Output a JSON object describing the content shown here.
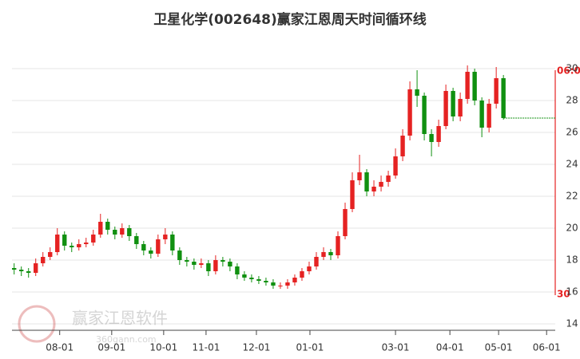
{
  "chart_data": {
    "type": "candlestick",
    "title": "卫星化学(002648)赢家江恩周天时间循环线",
    "x": [
      0,
      1,
      2,
      3,
      4,
      5,
      6,
      7,
      8,
      9,
      10,
      11,
      12,
      13,
      14,
      15,
      16,
      17,
      18,
      19,
      20,
      21,
      22,
      23,
      24,
      25,
      26,
      27,
      28,
      29,
      30,
      31,
      32,
      33,
      34,
      35,
      36,
      37,
      38,
      39,
      40,
      41,
      42,
      43,
      44,
      45,
      46,
      47,
      48,
      49,
      50,
      51,
      52,
      53,
      54,
      55,
      56,
      57,
      58,
      59,
      60,
      61,
      62,
      63,
      64,
      65,
      66,
      67,
      68
    ],
    "open": [
      17.5,
      17.4,
      17.3,
      17.2,
      17.8,
      18.2,
      18.5,
      19.6,
      18.9,
      18.8,
      19.0,
      19.1,
      19.6,
      20.4,
      19.9,
      19.6,
      20.0,
      19.5,
      19.0,
      18.6,
      18.4,
      19.3,
      19.6,
      18.6,
      18.0,
      17.9,
      17.7,
      17.8,
      17.3,
      18.0,
      17.9,
      17.6,
      17.1,
      16.9,
      16.8,
      16.7,
      16.6,
      16.4,
      16.4,
      16.6,
      16.9,
      17.3,
      17.6,
      18.2,
      18.5,
      18.3,
      19.5,
      21.2,
      23.0,
      23.5,
      22.3,
      22.6,
      22.9,
      23.3,
      24.5,
      25.8,
      28.7,
      28.3,
      25.9,
      25.4,
      26.4,
      28.6,
      27.0,
      28.1,
      29.8,
      28.0,
      26.3,
      27.8,
      29.4
    ],
    "high": [
      17.8,
      17.6,
      17.5,
      18.1,
      18.5,
      18.8,
      20.0,
      19.8,
      19.1,
      19.3,
      19.4,
      19.9,
      20.9,
      20.6,
      20.1,
      20.3,
      20.2,
      19.7,
      19.2,
      18.8,
      19.6,
      20.0,
      19.8,
      18.8,
      18.2,
      18.1,
      18.1,
      18.0,
      18.3,
      18.2,
      18.1,
      17.8,
      17.3,
      17.1,
      17.0,
      16.9,
      16.8,
      16.6,
      16.8,
      17.1,
      17.5,
      17.9,
      18.5,
      18.8,
      18.7,
      19.8,
      21.6,
      23.5,
      24.6,
      23.7,
      23.0,
      23.3,
      23.6,
      25.0,
      26.2,
      29.2,
      29.9,
      28.5,
      26.2,
      26.8,
      29.0,
      28.8,
      28.5,
      30.2,
      30.0,
      28.2,
      28.1,
      30.1,
      29.6
    ],
    "low": [
      17.1,
      17.0,
      16.9,
      17.0,
      17.6,
      18.0,
      18.3,
      18.6,
      18.5,
      18.6,
      18.8,
      18.9,
      19.4,
      19.6,
      19.3,
      19.4,
      19.2,
      18.7,
      18.3,
      18.1,
      18.2,
      19.0,
      18.3,
      17.7,
      17.6,
      17.4,
      17.5,
      17.0,
      17.1,
      17.6,
      17.3,
      16.8,
      16.7,
      16.6,
      16.5,
      16.4,
      16.2,
      16.2,
      16.2,
      16.4,
      16.7,
      17.1,
      17.4,
      18.0,
      18.0,
      18.1,
      19.3,
      21.0,
      22.7,
      22.0,
      22.0,
      22.3,
      22.6,
      23.1,
      24.2,
      25.5,
      27.6,
      25.5,
      24.5,
      25.1,
      26.2,
      26.7,
      26.7,
      27.8,
      27.7,
      25.7,
      26.0,
      27.5,
      26.8
    ],
    "close": [
      17.4,
      17.3,
      17.2,
      17.8,
      18.2,
      18.5,
      19.6,
      18.9,
      18.8,
      19.0,
      19.1,
      19.6,
      20.4,
      19.9,
      19.6,
      20.0,
      19.5,
      19.0,
      18.6,
      18.4,
      19.3,
      19.6,
      18.6,
      18.0,
      17.9,
      17.7,
      17.8,
      17.3,
      18.0,
      17.9,
      17.6,
      17.1,
      16.9,
      16.8,
      16.7,
      16.6,
      16.4,
      16.4,
      16.6,
      16.9,
      17.3,
      17.6,
      18.2,
      18.5,
      18.3,
      19.5,
      21.2,
      23.0,
      23.5,
      22.3,
      22.6,
      22.9,
      23.3,
      24.5,
      25.8,
      28.7,
      28.3,
      25.9,
      25.4,
      26.4,
      28.6,
      27.0,
      28.1,
      29.8,
      28.0,
      26.3,
      27.8,
      29.4,
      26.9
    ],
    "up_color": "#e52222",
    "down_color": "#109010",
    "xlim": [
      -0.3,
      75.2
    ],
    "xticks": [
      {
        "value": 6.33,
        "label": "08-01"
      },
      {
        "value": 13.56,
        "label": "09-01"
      },
      {
        "value": 20.78,
        "label": "10-01"
      },
      {
        "value": 26.67,
        "label": "11-01"
      },
      {
        "value": 33.67,
        "label": "12-01"
      },
      {
        "value": 41.11,
        "label": "01-01"
      },
      {
        "value": 53,
        "label": "03-01"
      },
      {
        "value": 60.56,
        "label": "04-01"
      },
      {
        "value": 67.33,
        "label": "05-01"
      },
      {
        "value": 74,
        "label": "06-01"
      }
    ],
    "ylim": [
      13.6,
      30.6
    ],
    "yticks": [
      14,
      16,
      18,
      20,
      22,
      24,
      26,
      28,
      30
    ],
    "grid": true,
    "annotations": [
      "06:0",
      "30"
    ],
    "watermark": {
      "text": "赢家江恩软件",
      "url": "360gann.com"
    }
  }
}
